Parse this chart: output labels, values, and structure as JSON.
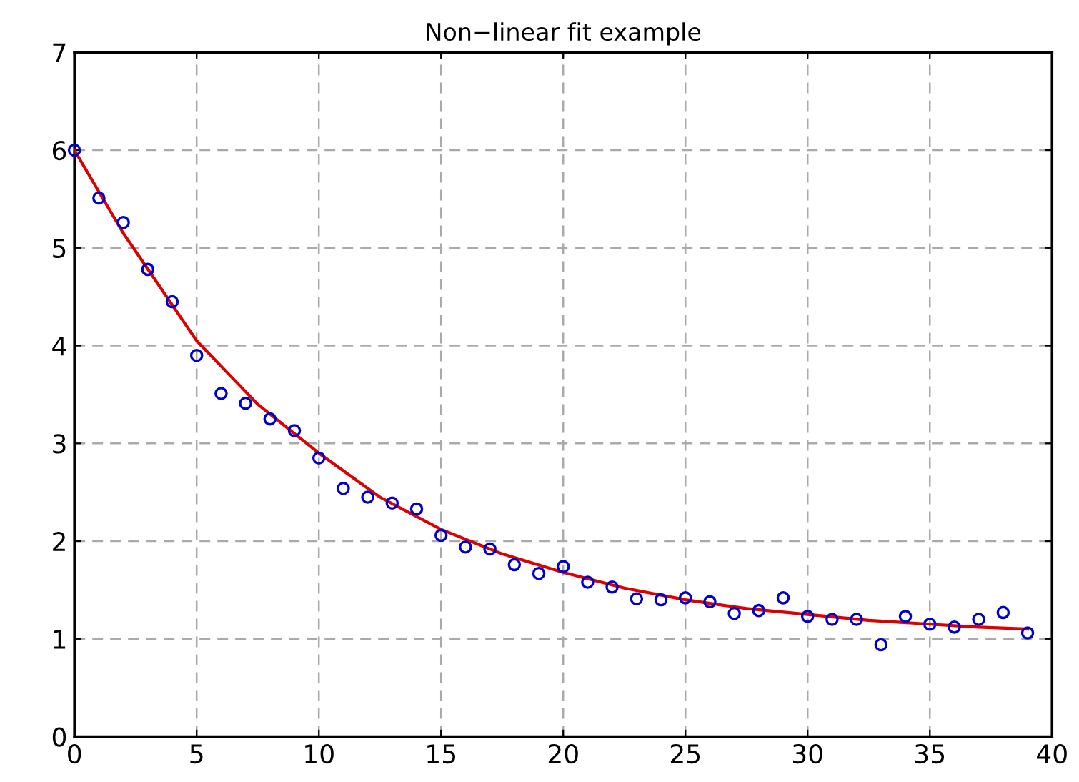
{
  "chart_data": {
    "type": "scatter",
    "title": "Non−linear fit example",
    "xlim": [
      0,
      40
    ],
    "xticks": [
      0,
      5,
      10,
      15,
      20,
      25,
      30,
      35,
      40
    ],
    "ylim": [
      0,
      7
    ],
    "yticks": [
      0,
      1,
      2,
      3,
      4,
      5,
      6,
      7
    ],
    "grid": true,
    "series": [
      {
        "color": "#0000cc",
        "marker": "circle",
        "x": [
          0,
          1,
          2,
          3,
          4,
          5,
          6,
          7,
          8,
          9,
          10,
          11,
          12,
          13,
          14,
          15,
          16,
          17,
          18,
          19,
          20,
          21,
          22,
          23,
          24,
          25,
          26,
          27,
          28,
          29,
          30,
          31,
          32,
          33,
          34,
          35,
          36,
          37,
          38,
          39
        ],
        "values": [
          6.0,
          5.51,
          5.26,
          4.78,
          4.45,
          3.9,
          3.51,
          3.41,
          3.25,
          3.13,
          2.85,
          2.54,
          2.45,
          2.39,
          2.33,
          2.06,
          1.94,
          1.92,
          1.76,
          1.67,
          1.74,
          1.58,
          1.53,
          1.41,
          1.4,
          1.42,
          1.38,
          1.26,
          1.29,
          1.42,
          1.23,
          1.2,
          1.2,
          0.94,
          1.23,
          1.15,
          1.12,
          1.2,
          1.27,
          1.06
        ]
      },
      {
        "type": "line",
        "color": "#dd0000",
        "marker": "none",
        "line_style": "solid",
        "x": [
          0,
          2,
          5,
          7.5,
          10,
          12.5,
          15,
          17.5,
          20,
          22.5,
          25,
          27.5,
          30,
          32.5,
          35,
          37,
          39
        ],
        "values": [
          6.0,
          5.15,
          4.05,
          3.4,
          2.9,
          2.45,
          2.12,
          1.87,
          1.68,
          1.52,
          1.4,
          1.31,
          1.25,
          1.19,
          1.15,
          1.12,
          1.1
        ]
      }
    ]
  }
}
